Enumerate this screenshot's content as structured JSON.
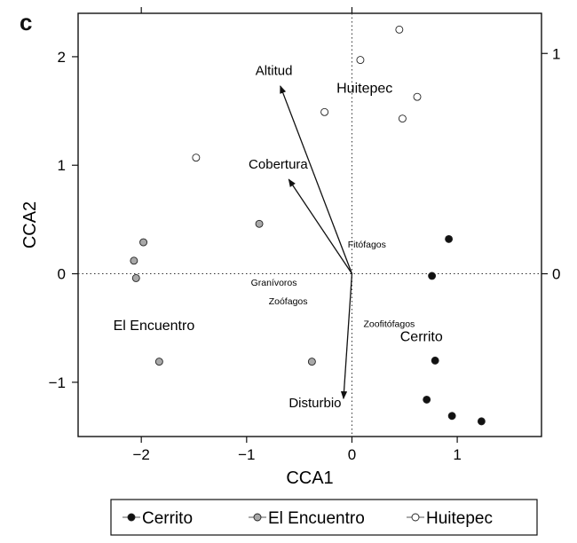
{
  "panel_label": "c",
  "chart_data": {
    "type": "scatter",
    "xlabel": "CCA1",
    "ylabel": "CCA2",
    "xlim": [
      -2.6,
      1.8
    ],
    "ylim": [
      -1.5,
      2.4
    ],
    "x_ticks": [
      -2,
      -1,
      0,
      1
    ],
    "y_ticks": [
      -1,
      0,
      1,
      2
    ],
    "right_axis_ticks": [
      {
        "label": "0",
        "at_y": 0
      },
      {
        "label": "1",
        "at_y": 2.03
      }
    ],
    "top_axis_ticks_at_x": [
      -2,
      0
    ],
    "reference_lines": {
      "x": 0,
      "y": 0,
      "style": "dotted"
    },
    "series": [
      {
        "name": "Cerrito",
        "fill": "#111111",
        "points": [
          [
            0.92,
            0.32
          ],
          [
            0.76,
            -0.02
          ],
          [
            0.79,
            -0.8
          ],
          [
            0.71,
            -1.16
          ],
          [
            0.95,
            -1.31
          ],
          [
            1.23,
            -1.36
          ]
        ]
      },
      {
        "name": "El Encuentro",
        "fill": "#a8a8a8",
        "points": [
          [
            -1.98,
            0.29
          ],
          [
            -2.07,
            0.12
          ],
          [
            -2.05,
            -0.04
          ],
          [
            -0.88,
            0.46
          ],
          [
            -1.83,
            -0.81
          ],
          [
            -0.38,
            -0.81
          ]
        ]
      },
      {
        "name": "Huitepec",
        "fill": "#ffffff",
        "points": [
          [
            0.45,
            2.25
          ],
          [
            0.08,
            1.97
          ],
          [
            0.62,
            1.63
          ],
          [
            0.48,
            1.43
          ],
          [
            -0.26,
            1.49
          ],
          [
            -1.48,
            1.07
          ]
        ]
      }
    ],
    "vectors": [
      {
        "label": "Altitud",
        "x": -0.68,
        "y": 1.73,
        "label_x": -0.74,
        "label_y": 1.83
      },
      {
        "label": "Cobertura",
        "x": -0.6,
        "y": 0.87,
        "label_x": -0.7,
        "label_y": 0.97
      },
      {
        "label": "Disturbio",
        "x": -0.08,
        "y": -1.15,
        "label_x": -0.35,
        "label_y": -1.23
      }
    ],
    "group_labels": [
      {
        "text": "Huitepec",
        "x": 0.12,
        "y": 1.67
      },
      {
        "text": "El Encuentro",
        "x": -1.88,
        "y": -0.52
      },
      {
        "text": "Cerrito",
        "x": 0.66,
        "y": -0.62
      }
    ],
    "species_labels": [
      {
        "text": "Fitófagos",
        "x": -0.04,
        "y": 0.24
      },
      {
        "text": "Granívoros",
        "x": -0.96,
        "y": -0.11
      },
      {
        "text": "Zoófagos",
        "x": -0.79,
        "y": -0.28
      },
      {
        "text": "Zoofitófagos",
        "x": 0.11,
        "y": -0.49
      }
    ]
  },
  "legend": [
    {
      "label": "Cerrito",
      "fill": "#111111"
    },
    {
      "label": "El Encuentro",
      "fill": "#a8a8a8"
    },
    {
      "label": "Huitepec",
      "fill": "#ffffff"
    }
  ]
}
